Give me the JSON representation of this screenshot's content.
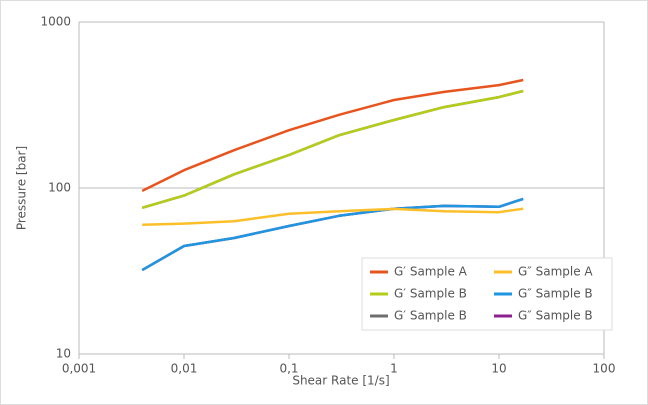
{
  "chart_data": {
    "type": "line",
    "x_label": "Shear Rate [1/s]",
    "y_label": "Pressure [bar]",
    "x": [
      0.004,
      0.01,
      0.03,
      0.1,
      0.3,
      1,
      3,
      10,
      17
    ],
    "series": [
      {
        "name": "G′ Sample A",
        "color": "#e8541e",
        "values": [
          96,
          128,
          169,
          223,
          276,
          339,
          379,
          417,
          447
        ]
      },
      {
        "name": "G″ Sample A",
        "color": "#fbbf2a",
        "values": [
          60,
          61,
          63,
          70,
          72.5,
          74.8,
          72.5,
          71.5,
          75
        ]
      },
      {
        "name": "G′ Sample B",
        "color": "#b5cc18",
        "values": [
          76,
          90,
          121,
          158,
          208,
          257,
          307,
          353,
          384
        ]
      },
      {
        "name": "G″ Sample B",
        "color": "#1f96e0",
        "values": [
          32,
          44.7,
          50,
          59,
          68,
          75,
          78,
          77,
          86
        ]
      },
      {
        "name": "G′ Sample B",
        "color": "#6e6e6e",
        "values": [
          76,
          90,
          121,
          158,
          208,
          257,
          307,
          353,
          384
        ]
      },
      {
        "name": "G″ Sample B",
        "color": "#8e1e8e",
        "values": [
          32,
          44.7,
          50,
          59,
          68,
          75,
          78,
          77,
          86
        ]
      }
    ],
    "xscale": "log",
    "yscale": "log",
    "xlim": [
      0.001,
      100
    ],
    "ylim": [
      10,
      1000
    ],
    "xticks": [
      {
        "value": 0.001,
        "label": "0,001"
      },
      {
        "value": 0.01,
        "label": "0,01"
      },
      {
        "value": 0.1,
        "label": "0,1"
      },
      1,
      10,
      100
    ],
    "yticks": [
      10,
      100,
      1000
    ],
    "grid": true,
    "legend": "lower right"
  }
}
